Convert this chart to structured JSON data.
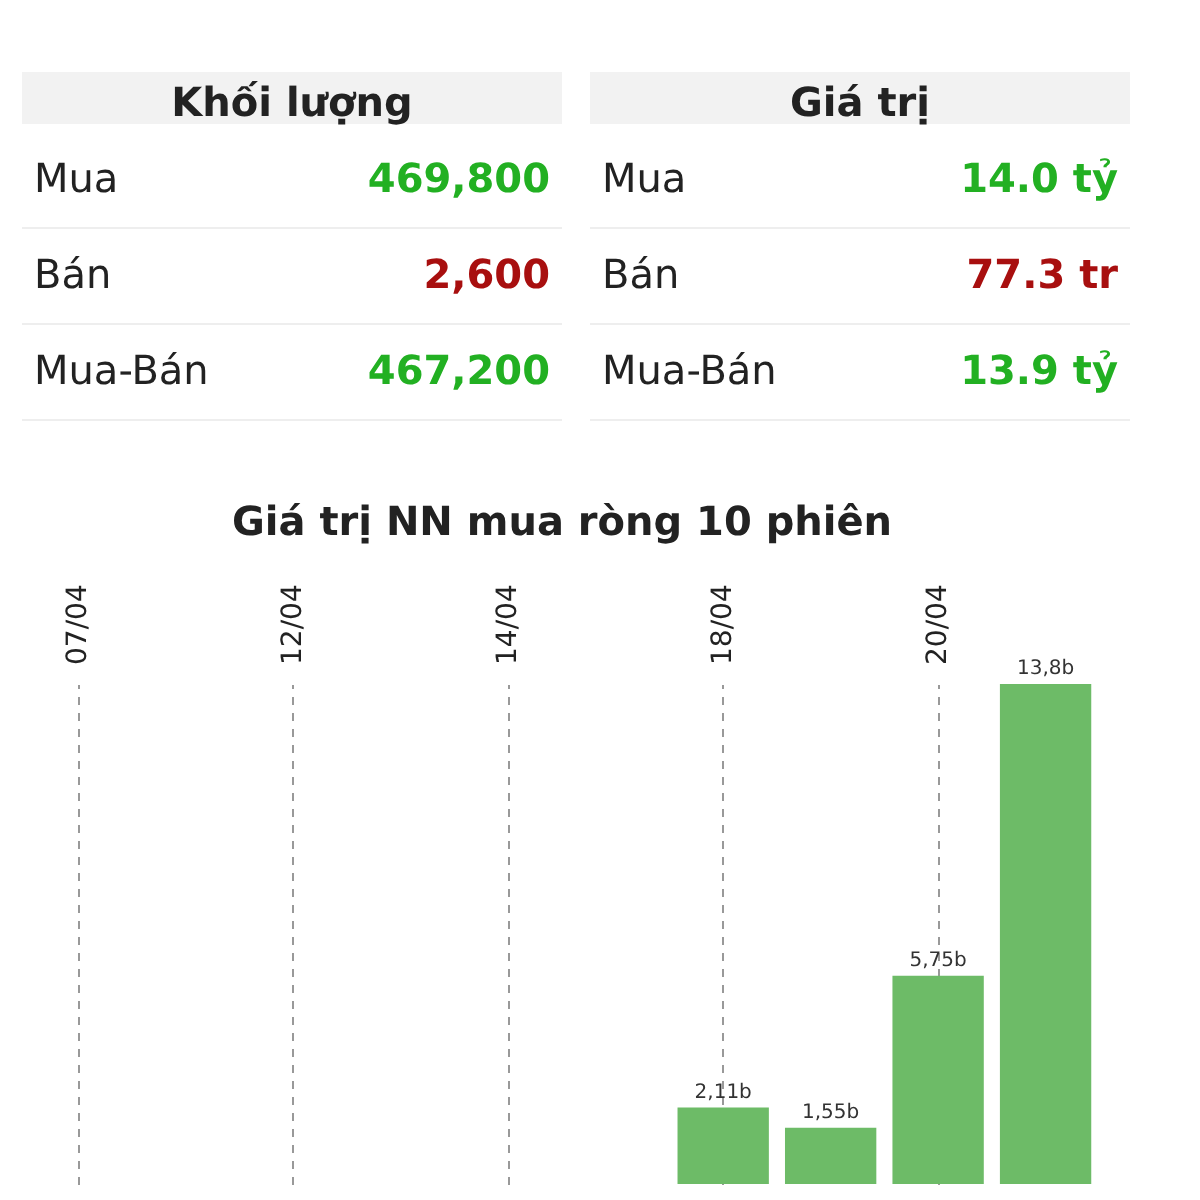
{
  "chart_data": [
    {
      "type": "other",
      "title": "Khối lượng",
      "categories": [
        "Mua",
        "Bán",
        "Mua-Bán"
      ],
      "value_labels": [
        "469,800",
        "2,600",
        "467,200"
      ],
      "colors": [
        "#22b022",
        "#a80f0f",
        "#22b022"
      ]
    },
    {
      "type": "other",
      "title": "Giá trị",
      "categories": [
        "Mua",
        "Bán",
        "Mua-Bán"
      ],
      "value_labels": [
        "14.0 tỷ",
        "77.3 tr",
        "13.9 tỷ"
      ],
      "colors": [
        "#22b022",
        "#a80f0f",
        "#22b022"
      ]
    },
    {
      "type": "bar",
      "title": "Giá trị NN mua ròng 10 phiên",
      "categories": [
        "07/04",
        null,
        "12/04",
        null,
        "14/04",
        null,
        "18/04",
        null,
        "20/04",
        null
      ],
      "values": [
        null,
        null,
        null,
        null,
        null,
        null,
        2.11,
        1.55,
        5.75,
        13.8
      ],
      "value_labels": [
        null,
        null,
        null,
        null,
        null,
        null,
        "2,11b",
        "1,55b",
        "5,75b",
        "13,8b"
      ],
      "color": "#6dbb67",
      "grid": "x"
    }
  ]
}
